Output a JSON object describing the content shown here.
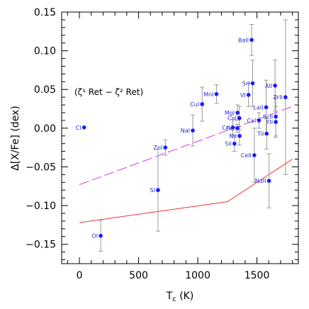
{
  "chart_data": {
    "type": "scatter",
    "xlabel": "T_c (K)",
    "ylabel": "Δ[X/Fe] (dex)",
    "annotation": "(ζ¹ Ret − ζ² Ret)",
    "xlim": [
      -150,
      1850
    ],
    "ylim": [
      -0.175,
      0.15
    ],
    "xticks": [
      0,
      500,
      1000,
      1500
    ],
    "yticks": [
      -0.15,
      -0.1,
      -0.05,
      0.0,
      0.05,
      0.1,
      0.15
    ],
    "ytick_labels": [
      "−0.15",
      "−0.10",
      "−0.05",
      "0.00",
      "0.05",
      "0.10",
      "0.15"
    ],
    "colors": {
      "points": "#1a1aff",
      "labels": "#2a2ad0",
      "errorbars": "#999999",
      "magenta_line": "#dd33dd",
      "red_line": "#ee3333"
    },
    "points": [
      {
        "label": "CI",
        "x": 40,
        "y": 0.001,
        "err": 0
      },
      {
        "label": "OI",
        "x": 180,
        "y": -0.139,
        "err": 0.02
      },
      {
        "label": "NaI",
        "x": 958,
        "y": -0.003,
        "err": 0.02
      },
      {
        "label": "MgI",
        "x": 1336,
        "y": 0.02,
        "err": 0.01
      },
      {
        "label": "AlI",
        "x": 1653,
        "y": 0.055,
        "err": 0.033
      },
      {
        "label": "SiI",
        "x": 1310,
        "y": -0.02,
        "err": 0.01
      },
      {
        "label": "SI",
        "x": 664,
        "y": -0.08,
        "err": 0.053
      },
      {
        "label": "CaI",
        "x": 1517,
        "y": 0.01,
        "err": 0.01
      },
      {
        "label": "ScII",
        "x": 1659,
        "y": 0.015,
        "err": 0.025
      },
      {
        "label": "TiI",
        "x": 1582,
        "y": -0.007,
        "err": 0.02
      },
      {
        "label": "VI",
        "x": 1429,
        "y": 0.043,
        "err": 0.015
      },
      {
        "label": "CrI",
        "x": 1296,
        "y": 0.001,
        "err": 0.01
      },
      {
        "label": "MnI",
        "x": 1158,
        "y": 0.044,
        "err": 0.012
      },
      {
        "label": "FeI",
        "x": 1334,
        "y": 0.0,
        "err": 0.005
      },
      {
        "label": "CoI",
        "x": 1352,
        "y": 0.013,
        "err": 0.015
      },
      {
        "label": "NiI",
        "x": 1353,
        "y": -0.01,
        "err": 0.012
      },
      {
        "label": "CuI",
        "x": 1037,
        "y": 0.031,
        "err": 0.022
      },
      {
        "label": "ZnI",
        "x": 726,
        "y": -0.025,
        "err": 0.01
      },
      {
        "label": "SrI",
        "x": 1464,
        "y": 0.058,
        "err": 0.03
      },
      {
        "label": "YII",
        "x": 1659,
        "y": 0.008,
        "err": 0.02
      },
      {
        "label": "ZrII",
        "x": 1741,
        "y": 0.04,
        "err": 0.1
      },
      {
        "label": "BaII",
        "x": 1455,
        "y": 0.114,
        "err": 0.02
      },
      {
        "label": "LaII",
        "x": 1578,
        "y": 0.027,
        "err": 0.035
      },
      {
        "label": "CeII",
        "x": 1478,
        "y": -0.035,
        "err": 0.035
      },
      {
        "label": "NdII",
        "x": 1602,
        "y": -0.068,
        "err": 0.035
      }
    ],
    "magenta_line": [
      [
        0,
        -0.073
      ],
      [
        1800,
        0.028
      ]
    ],
    "red_line": [
      [
        0,
        -0.122
      ],
      [
        1250,
        -0.095
      ],
      [
        1800,
        -0.04
      ]
    ]
  }
}
